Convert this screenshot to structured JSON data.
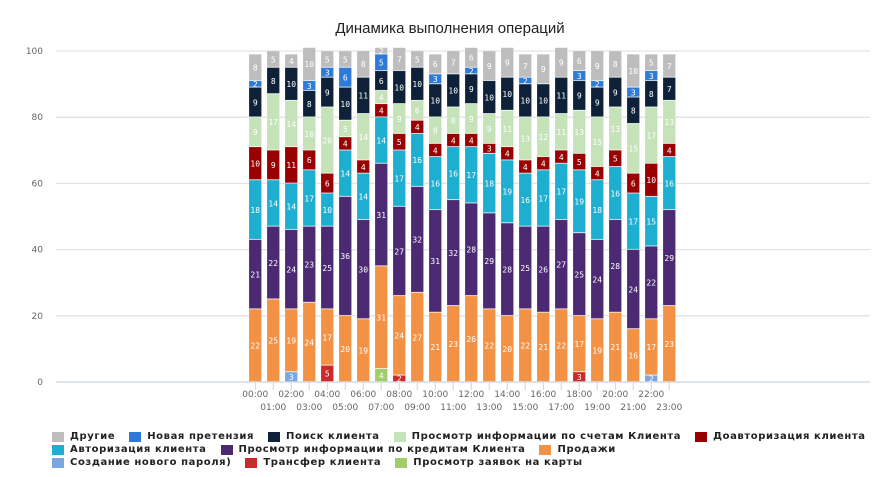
{
  "chart_data": {
    "type": "bar",
    "stacked": true,
    "title": "Динамика выполнения операций",
    "xlabel": "",
    "ylabel": "",
    "ylim": [
      0,
      100
    ],
    "yticks": [
      "0",
      "20",
      "40",
      "60",
      "80",
      "100"
    ],
    "grid": true,
    "legend_position": "bottom",
    "categories": [
      "00:00",
      "01:00",
      "02:00",
      "03:00",
      "04:00",
      "05:00",
      "06:00",
      "07:00",
      "08:00",
      "09:00",
      "10:00",
      "11:00",
      "12:00",
      "13:00",
      "14:00",
      "15:00",
      "16:00",
      "17:00",
      "18:00",
      "19:00",
      "20:00",
      "21:00",
      "22:00",
      "23:00"
    ],
    "series": [
      {
        "name": "Создание нового пароля)",
        "color": "#7ba7e0",
        "values": [
          0,
          0,
          3,
          0,
          0,
          0,
          0,
          0,
          0,
          0,
          0,
          0,
          0,
          0,
          0,
          0,
          0,
          0,
          0,
          0,
          0,
          0,
          2,
          0
        ]
      },
      {
        "name": "Трансфер клиента",
        "color": "#cc2a2a",
        "values": [
          0,
          0,
          0,
          0,
          5,
          0,
          0,
          0,
          2,
          0,
          0,
          0,
          0,
          0,
          0,
          0,
          0,
          0,
          3,
          0,
          0,
          0,
          0,
          0
        ]
      },
      {
        "name": "Просмотр заявок на карты",
        "color": "#a3cc6a",
        "values": [
          0,
          0,
          0,
          0,
          0,
          0,
          0,
          4,
          0,
          0,
          0,
          0,
          0,
          0,
          0,
          0,
          0,
          0,
          0,
          0,
          0,
          0,
          0,
          0
        ]
      },
      {
        "name": "Продажи",
        "color": "#f39244",
        "values": [
          22,
          25,
          19,
          24,
          17,
          20,
          19,
          31,
          24,
          27,
          21,
          23,
          26,
          22,
          20,
          22,
          21,
          22,
          17,
          19,
          21,
          16,
          17,
          23
        ]
      },
      {
        "name": "Просмотр информации по кредитам Клиента",
        "color": "#4b2a73",
        "values": [
          21,
          22,
          24,
          23,
          25,
          36,
          30,
          31,
          27,
          32,
          31,
          32,
          28,
          29,
          28,
          25,
          26,
          27,
          25,
          24,
          28,
          24,
          22,
          29
        ]
      },
      {
        "name": "Авторизация клиента",
        "color": "#1daed0",
        "values": [
          18,
          14,
          14,
          17,
          10,
          14,
          14,
          14,
          17,
          16,
          16,
          16,
          17,
          18,
          19,
          16,
          17,
          17,
          19,
          18,
          16,
          17,
          15,
          16
        ]
      },
      {
        "name": "Доавторизация клиента",
        "color": "#990000",
        "values": [
          10,
          9,
          11,
          6,
          6,
          4,
          4,
          4,
          5,
          4,
          4,
          4,
          4,
          3,
          4,
          4,
          4,
          4,
          5,
          4,
          5,
          6,
          10,
          4
        ]
      },
      {
        "name": "Просмотр информации по счетам Клиента",
        "color": "#c6e2b8",
        "values": [
          9,
          17,
          14,
          10,
          20,
          5,
          14,
          4,
          9,
          6,
          8,
          8,
          9,
          9,
          11,
          13,
          12,
          11,
          13,
          15,
          13,
          15,
          17,
          13
        ]
      },
      {
        "name": "Поиск клиента",
        "color": "#0e2139",
        "values": [
          9,
          8,
          10,
          8,
          9,
          10,
          11,
          6,
          10,
          10,
          10,
          10,
          9,
          10,
          10,
          10,
          10,
          11,
          9,
          9,
          9,
          8,
          8,
          7
        ]
      },
      {
        "name": "Новая претензия",
        "color": "#2f7ad6",
        "values": [
          2,
          0,
          0,
          3,
          3,
          6,
          0,
          5,
          0,
          0,
          3,
          0,
          2,
          0,
          0,
          2,
          0,
          0,
          3,
          2,
          0,
          3,
          3,
          0
        ]
      },
      {
        "name": "Другие",
        "color": "#bdbdbd",
        "values": [
          8,
          5,
          4,
          10,
          5,
          5,
          8,
          2,
          7,
          5,
          6,
          7,
          6,
          9,
          9,
          7,
          9,
          9,
          6,
          9,
          8,
          10,
          5,
          7
        ]
      }
    ]
  },
  "legend": {
    "rows": [
      [
        {
          "name": "Другие",
          "color": "#bdbdbd",
          "label": "Другие"
        },
        {
          "name": "Новая претензия",
          "color": "#2f7ad6",
          "label": "Новая претензия"
        },
        {
          "name": "Поиск клиента",
          "color": "#0e2139",
          "label": "Поиск клиента"
        },
        {
          "name": "Просмотр информации по счетам Клиента",
          "color": "#c6e2b8",
          "label": "Просмотр информации по счетам Клиента"
        },
        {
          "name": "Доавторизация клиента",
          "color": "#990000",
          "label": "Доавторизация клиента"
        }
      ],
      [
        {
          "name": "Авторизация клиента",
          "color": "#1daed0",
          "label": "Авторизация клиента"
        },
        {
          "name": "Просмотр информации по кредитам Клиента",
          "color": "#4b2a73",
          "label": "Просмотр информации по кредитам Клиента"
        },
        {
          "name": "Продажи",
          "color": "#f39244",
          "label": "Продажи"
        }
      ],
      [
        {
          "name": "Создание нового пароля)",
          "color": "#7ba7e0",
          "label": " Создание нового пароля)"
        },
        {
          "name": "Трансфер клиента",
          "color": "#cc2a2a",
          "label": "Трансфер клиента"
        },
        {
          "name": "Просмотр заявок на карты",
          "color": "#a3cc6a",
          "label": "Просмотр заявок на карты"
        }
      ]
    ]
  }
}
